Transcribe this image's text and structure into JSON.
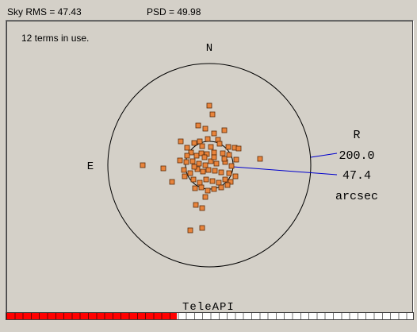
{
  "stats": {
    "sky_rms": "Sky RMS =  47.43",
    "psd": "PSD =  49.98"
  },
  "plot": {
    "terms_label": "12 terms in use.",
    "compass": {
      "north": "N",
      "east": "E"
    },
    "radius_heading": "R",
    "outer_radius_value": "200.0",
    "inner_radius_value": "47.4",
    "units": "arcsec"
  },
  "progress": {
    "label": "TeleAPI",
    "fraction": 0.42,
    "fill_color": "#ff0000"
  },
  "colors": {
    "background": "#d4d0c8",
    "marker_fill": "#e8843c",
    "marker_stroke": "#5a2a08",
    "leader_line": "#0000cc"
  }
}
